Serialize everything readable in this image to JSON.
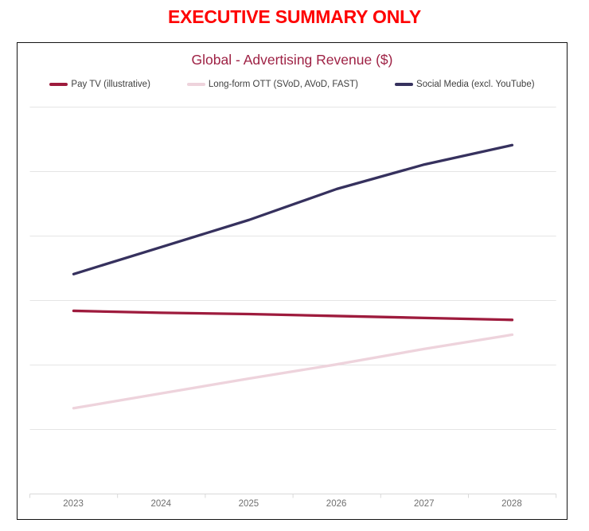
{
  "banner": {
    "text": "EXECUTIVE SUMMARY ONLY",
    "color": "#fe0000"
  },
  "chart": {
    "title": "Global - Advertising Revenue ($)",
    "title_color": "#9e2144",
    "x_labels": [
      "2023",
      "2024",
      "2025",
      "2026",
      "2027",
      "2028"
    ],
    "colors": {
      "gridline": "#e5e5e5",
      "axis_line": "#d9d9d9",
      "x_label_text": "#6f6f6f",
      "legend_text": "#3f3f3f",
      "box_border": "#141414"
    }
  },
  "chart_data": {
    "type": "line",
    "title": "Global - Advertising Revenue ($)",
    "categories": [
      "2023",
      "2024",
      "2025",
      "2026",
      "2027",
      "2028"
    ],
    "series": [
      {
        "key": "pay-tv",
        "name": "Pay TV (illustrative)",
        "color": "#9e1b3d",
        "values": [
          2.84,
          2.81,
          2.79,
          2.76,
          2.73,
          2.7
        ]
      },
      {
        "key": "long-form-ott",
        "name": "Long-form OTT (SVoD, AVoD, FAST)",
        "color": "#eed3dc",
        "values": [
          1.33,
          1.56,
          1.79,
          2.01,
          2.25,
          2.47
        ]
      },
      {
        "key": "social-media",
        "name": "Social Media (excl. YouTube)",
        "color": "#36315e",
        "values": [
          3.41,
          3.83,
          4.25,
          4.73,
          5.11,
          5.41
        ]
      }
    ],
    "xlabel": "",
    "ylabel": "",
    "ylim": [
      0,
      6
    ],
    "y_axis_labeled": false,
    "y_units_note": "unlabeled axis; values estimated in gridline units (axis=0, one gridline=1)",
    "gridlines": "horizontal",
    "legend_position": "top"
  }
}
